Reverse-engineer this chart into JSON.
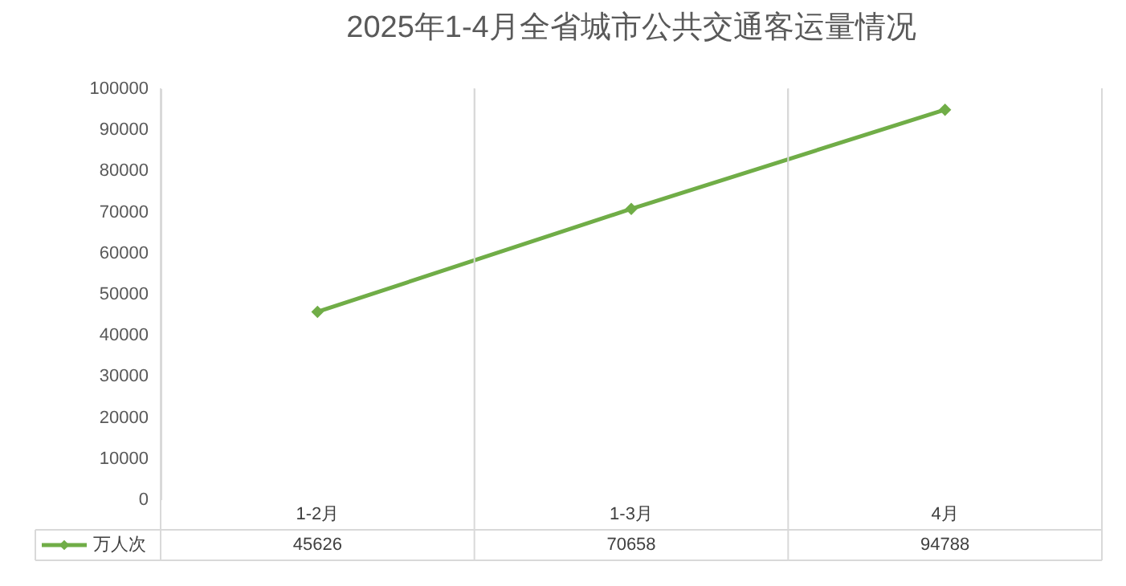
{
  "chart_data": {
    "type": "line",
    "title": "2025年1-4月全省城市公共交通客运量情况",
    "categories": [
      "1-2月",
      "1-3月",
      "4月"
    ],
    "series": [
      {
        "name": "万人次",
        "color": "#70ad47",
        "values": [
          45626,
          70658,
          94788
        ]
      }
    ],
    "ylim": [
      0,
      100000
    ],
    "yticks": [
      0,
      10000,
      20000,
      30000,
      40000,
      50000,
      60000,
      70000,
      80000,
      90000,
      100000
    ],
    "grid": "x",
    "legend": "bottom left",
    "marker": "diamond",
    "line_style": "solid",
    "data_labels": true
  }
}
